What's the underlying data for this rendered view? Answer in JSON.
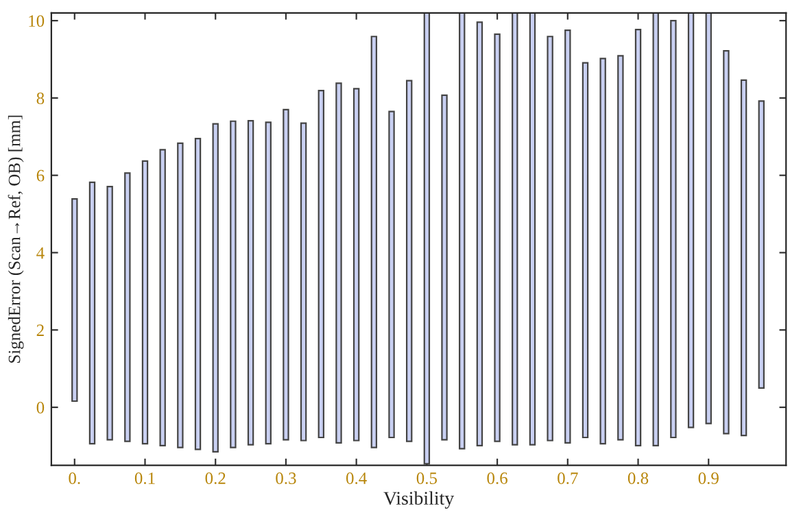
{
  "chart_data": {
    "type": "bar",
    "xlabel": "Visibility",
    "ylabel": "SignedError (Scan→Ref, OB) [mm]",
    "x": [
      0,
      0.025,
      0.05,
      0.075,
      0.1,
      0.125,
      0.15,
      0.175,
      0.2,
      0.225,
      0.25,
      0.275,
      0.3,
      0.325,
      0.35,
      0.375,
      0.4,
      0.425,
      0.45,
      0.475,
      0.5,
      0.525,
      0.55,
      0.575,
      0.6,
      0.625,
      0.65,
      0.675,
      0.7,
      0.725,
      0.75,
      0.775,
      0.8,
      0.825,
      0.85,
      0.875,
      0.9,
      0.925,
      0.95,
      0.975
    ],
    "base": [
      0.16,
      -0.94,
      -0.84,
      -0.88,
      -0.94,
      -0.99,
      -1.04,
      -1.09,
      -1.15,
      -1.04,
      -0.97,
      -0.94,
      -0.84,
      -0.86,
      -0.78,
      -0.92,
      -0.86,
      -1.04,
      -0.78,
      -0.88,
      -1.46,
      -0.84,
      -1.07,
      -0.99,
      -0.88,
      -0.97,
      -0.97,
      -0.86,
      -0.92,
      -0.78,
      -0.94,
      -0.84,
      -0.99,
      -0.99,
      -0.78,
      -0.52,
      -0.42,
      -0.68,
      -0.73,
      0.5
    ],
    "values": [
      5.23,
      6.76,
      6.55,
      6.94,
      7.31,
      7.65,
      7.87,
      8.04,
      8.48,
      8.44,
      8.38,
      8.31,
      8.54,
      8.21,
      8.97,
      9.3,
      9.1,
      10.63,
      8.43,
      9.33,
      11.66,
      8.91,
      11.27,
      10.95,
      10.53,
      11.17,
      11.17,
      10.45,
      10.67,
      9.69,
      9.96,
      9.93,
      10.76,
      11.19,
      10.78,
      10.72,
      10.62,
      9.9,
      9.19,
      7.42
    ],
    "color": "#c9d0f2",
    "xlim": [
      -0.033,
      1.01
    ],
    "xticks": [
      {
        "value": 0,
        "label": "0."
      },
      0.1,
      0.2,
      0.3,
      0.4,
      0.5,
      0.6,
      0.7,
      0.8,
      0.9
    ],
    "ylim": [
      -1.5,
      10.2
    ],
    "yticks": [
      0,
      2,
      4,
      6,
      8,
      10
    ],
    "grid": false,
    "legend": false
  }
}
